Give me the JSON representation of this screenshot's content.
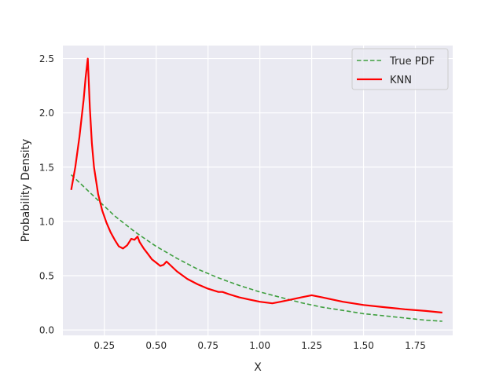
{
  "chart_data": {
    "type": "line",
    "title": "",
    "xlabel": "X",
    "ylabel": "Probability Density",
    "xlim": [
      0.05,
      1.93
    ],
    "ylim": [
      -0.05,
      2.62
    ],
    "xticks": [
      0.25,
      0.5,
      0.75,
      1.0,
      1.25,
      1.5,
      1.75
    ],
    "xtick_labels": [
      "0.25",
      "0.50",
      "0.75",
      "1.00",
      "1.25",
      "1.50",
      "1.75"
    ],
    "yticks": [
      0.0,
      0.5,
      1.0,
      1.5,
      2.0,
      2.5
    ],
    "ytick_labels": [
      "0.0",
      "0.5",
      "1.0",
      "1.5",
      "2.0",
      "2.5"
    ],
    "grid": true,
    "legend_position": "top-right",
    "colors": {
      "background": "#eaeaf2",
      "grid": "#ffffff",
      "true_pdf": "#3f9f3f",
      "knn": "#ff0000"
    },
    "series": [
      {
        "name": "True PDF",
        "style": "dashed",
        "x": [
          0.09,
          0.2,
          0.3,
          0.4,
          0.5,
          0.6,
          0.7,
          0.8,
          0.9,
          1.0,
          1.1,
          1.2,
          1.3,
          1.4,
          1.5,
          1.6,
          1.7,
          1.8,
          1.88
        ],
        "y": [
          1.43,
          1.23,
          1.05,
          0.9,
          0.77,
          0.66,
          0.56,
          0.48,
          0.41,
          0.35,
          0.3,
          0.25,
          0.21,
          0.18,
          0.15,
          0.13,
          0.11,
          0.09,
          0.08
        ]
      },
      {
        "name": "KNN",
        "style": "solid",
        "x": [
          0.09,
          0.11,
          0.13,
          0.15,
          0.16,
          0.17,
          0.18,
          0.19,
          0.2,
          0.22,
          0.24,
          0.26,
          0.28,
          0.3,
          0.32,
          0.34,
          0.36,
          0.38,
          0.395,
          0.41,
          0.42,
          0.44,
          0.46,
          0.48,
          0.5,
          0.52,
          0.535,
          0.55,
          0.6,
          0.65,
          0.7,
          0.75,
          0.8,
          0.82,
          0.85,
          0.9,
          0.95,
          1.0,
          1.06,
          1.1,
          1.15,
          1.2,
          1.25,
          1.3,
          1.4,
          1.5,
          1.6,
          1.7,
          1.8,
          1.88
        ],
        "y": [
          1.29,
          1.5,
          1.78,
          2.12,
          2.33,
          2.5,
          2.05,
          1.72,
          1.5,
          1.25,
          1.1,
          0.99,
          0.9,
          0.83,
          0.77,
          0.75,
          0.78,
          0.84,
          0.83,
          0.86,
          0.81,
          0.75,
          0.7,
          0.65,
          0.62,
          0.59,
          0.6,
          0.63,
          0.54,
          0.47,
          0.42,
          0.38,
          0.35,
          0.35,
          0.33,
          0.3,
          0.28,
          0.26,
          0.245,
          0.26,
          0.28,
          0.3,
          0.32,
          0.3,
          0.26,
          0.23,
          0.21,
          0.19,
          0.175,
          0.16
        ]
      }
    ]
  }
}
